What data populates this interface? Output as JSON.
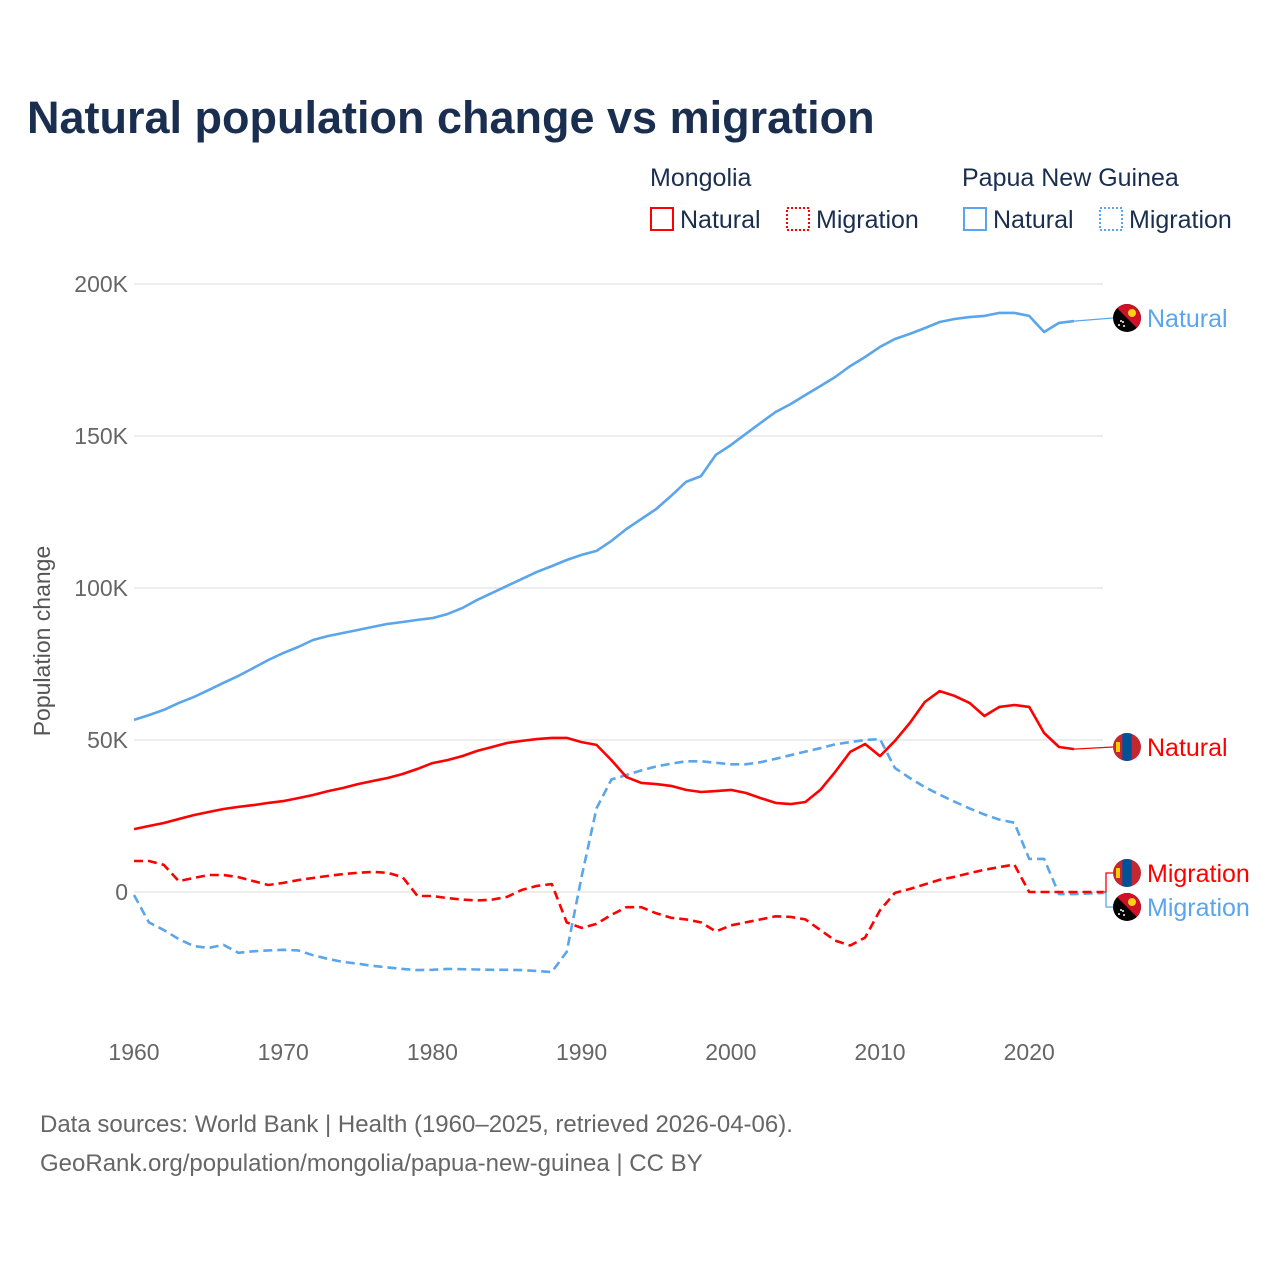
{
  "colors": {
    "mongolia": "#ff0000",
    "png": "#5ba5ea",
    "title": "#1a2e4f",
    "grid": "#e6e6e6",
    "text": "#666666"
  },
  "title": "Natural population change vs migration",
  "legend": {
    "groups": [
      {
        "country": "Mongolia",
        "items": [
          "Natural",
          "Migration"
        ]
      },
      {
        "country": "Papua New Guinea",
        "items": [
          "Natural",
          "Migration"
        ]
      }
    ]
  },
  "footer": {
    "line1": "Data sources: World Bank | Health (1960–2025, retrieved 2026-04-06).",
    "line2": "GeoRank.org/population/mongolia/papua-new-guinea | CC BY"
  },
  "chart_data": {
    "type": "line",
    "title": "Natural population change vs migration",
    "xlabel": "",
    "ylabel": "Population change",
    "xlim": [
      1960,
      2025
    ],
    "ylim": [
      -35000,
      200000
    ],
    "x_ticks": [
      1960,
      1970,
      1980,
      1990,
      2000,
      2010,
      2020
    ],
    "x_tick_labels": [
      "1960",
      "1970",
      "1980",
      "1990",
      "2000",
      "2010",
      "2020"
    ],
    "y_ticks": [
      0,
      50000,
      100000,
      150000,
      200000
    ],
    "y_tick_labels": [
      "0",
      "50K",
      "100K",
      "150K",
      "200K"
    ],
    "grid": true,
    "legend_position": "top-right",
    "series": [
      {
        "name": "Papua New Guinea Natural",
        "end_label": "Natural",
        "country": "png",
        "style": "solid",
        "start": 1960,
        "values_k": [
          56.6,
          58.2,
          59.9,
          62.2,
          64.1,
          66.4,
          68.8,
          71.1,
          73.7,
          76.3,
          78.6,
          80.6,
          82.9,
          84.2,
          85.2,
          86.2,
          87.2,
          88.2,
          88.8,
          89.5,
          90.1,
          91.4,
          93.4,
          96.1,
          98.4,
          100.7,
          103,
          105.3,
          107.2,
          109.2,
          110.9,
          112.2,
          115.5,
          119.4,
          122.7,
          126,
          130.3,
          134.9,
          136.8,
          143.8,
          147,
          150.7,
          154.3,
          157.9,
          160.5,
          163.5,
          166.4,
          169.4,
          173,
          176,
          179.3,
          181.9,
          183.6,
          185.5,
          187.5,
          188.5,
          189.1,
          189.5,
          190.5,
          190.5,
          189.5,
          184.2,
          187.2,
          187.8
        ]
      },
      {
        "name": "Mongolia Natural",
        "end_label": "Natural",
        "country": "mongolia",
        "style": "solid",
        "start": 1960,
        "values_k": [
          20.7,
          21.7,
          22.7,
          24,
          25.3,
          26.3,
          27.3,
          28,
          28.6,
          29.3,
          29.9,
          30.9,
          31.9,
          33.2,
          34.2,
          35.5,
          36.5,
          37.5,
          38.8,
          40.5,
          42.4,
          43.4,
          44.7,
          46.4,
          47.7,
          49,
          49.7,
          50.3,
          50.7,
          50.7,
          49.3,
          48.4,
          43.4,
          37.8,
          35.9,
          35.5,
          34.9,
          33.6,
          32.9,
          33.2,
          33.6,
          32.6,
          30.9,
          29.3,
          28.9,
          29.6,
          33.6,
          39.5,
          46.1,
          48.7,
          44.7,
          49.7,
          55.6,
          62.5,
          66.1,
          64.5,
          62.2,
          57.9,
          60.9,
          61.5,
          60.9,
          52.3,
          47.7,
          47
        ]
      },
      {
        "name": "Mongolia Migration",
        "end_label": "Migration",
        "country": "mongolia",
        "style": "dashed",
        "start": 1960,
        "values_k": [
          10.2,
          10.2,
          8.9,
          3.6,
          4.6,
          5.6,
          5.6,
          4.9,
          3.6,
          2.3,
          3,
          3.9,
          4.6,
          5.3,
          5.9,
          6.3,
          6.6,
          6.3,
          4.9,
          -1.3,
          -1.3,
          -2,
          -2.5,
          -2.8,
          -2.5,
          -1.6,
          0.7,
          2,
          2.6,
          -10,
          -11.8,
          -10.5,
          -7.5,
          -5,
          -5,
          -7,
          -8.5,
          -9,
          -10,
          -13,
          -11,
          -10,
          -9,
          -8,
          -8.2,
          -9,
          -12.5,
          -16,
          -17.6,
          -15,
          -6,
          -0.3,
          1,
          2.5,
          4,
          5,
          6.2,
          7.3,
          8.2,
          9,
          0,
          0,
          0,
          0,
          0,
          0
        ]
      },
      {
        "name": "Papua New Guinea Migration",
        "end_label": "Migration",
        "country": "png",
        "style": "dashed",
        "start": 1960,
        "values_k": [
          -1,
          -10,
          -12.5,
          -15.5,
          -17.8,
          -18.4,
          -17.4,
          -20,
          -19.5,
          -19.2,
          -19,
          -19.2,
          -20.8,
          -22,
          -23,
          -23.6,
          -24.3,
          -24.8,
          -25.3,
          -25.7,
          -25.6,
          -25.3,
          -25.4,
          -25.5,
          -25.6,
          -25.6,
          -25.7,
          -26,
          -26.3,
          -19.7,
          5,
          27.5,
          37,
          38.5,
          40,
          41.3,
          42.2,
          43,
          43,
          42.5,
          42,
          42,
          42.7,
          43.8,
          45,
          46.2,
          47.3,
          48.6,
          49.3,
          50,
          50.3,
          40.8,
          37.5,
          34.5,
          32,
          29.7,
          27.5,
          25.5,
          23.8,
          22.8,
          10.9,
          10.9,
          -0.7,
          -0.7,
          -0.5,
          -0.3
        ]
      }
    ]
  }
}
